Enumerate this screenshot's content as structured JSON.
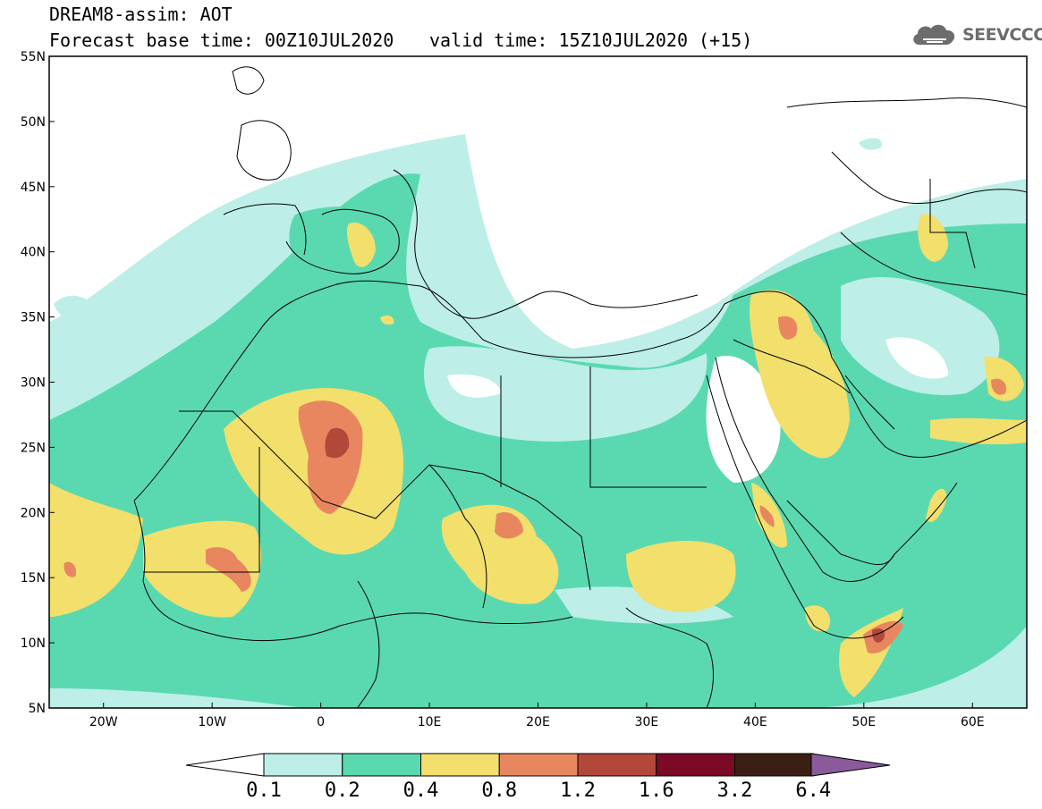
{
  "header": {
    "line1": "DREAM8-assim: AOT",
    "line2_left": "Forecast base time: 00Z10JUL2020",
    "line2_right": "valid time: 15Z10JUL2020 (+15)"
  },
  "logo": {
    "text": "SEEVCCC",
    "icon": "cloud-icon",
    "color": "#6c6c6c"
  },
  "map": {
    "lat_labels": [
      "55N",
      "50N",
      "45N",
      "40N",
      "35N",
      "30N",
      "25N",
      "20N",
      "15N",
      "10N",
      "5N"
    ],
    "lon_labels": [
      "20W",
      "10W",
      "0",
      "10E",
      "20E",
      "30E",
      "40E",
      "50E",
      "60E"
    ],
    "lat_range": [
      5,
      55
    ],
    "lon_range": [
      -25,
      65
    ]
  },
  "colorbar": {
    "labels": [
      "0.1",
      "0.2",
      "0.4",
      "0.8",
      "1.2",
      "1.6",
      "3.2",
      "6.4"
    ],
    "colors": [
      "#ffffff",
      "#bdeee8",
      "#5ad9b0",
      "#f2df6c",
      "#e8875f",
      "#b1483a",
      "#7a0a26",
      "#3a2014",
      "#8a5a9a"
    ]
  }
}
